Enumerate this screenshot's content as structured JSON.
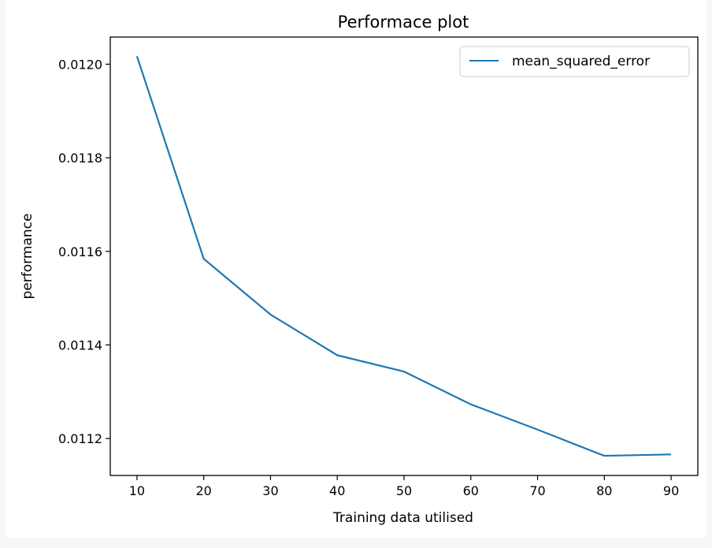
{
  "chart_data": {
    "type": "line",
    "title": "Performace plot",
    "xlabel": "Training data utilised",
    "ylabel": "performance",
    "x": [
      10,
      20,
      30,
      40,
      50,
      60,
      70,
      80,
      90
    ],
    "series": [
      {
        "name": "mean_squared_error",
        "color": "#1f77b4",
        "values": [
          0.012017,
          0.011584,
          0.011465,
          0.011378,
          0.011343,
          0.011273,
          0.011219,
          0.011163,
          0.011166
        ]
      }
    ],
    "xticks": [
      10,
      20,
      30,
      40,
      50,
      60,
      70,
      80,
      90
    ],
    "xtick_labels": [
      "10",
      "20",
      "30",
      "40",
      "50",
      "60",
      "70",
      "80",
      "90"
    ],
    "yticks": [
      0.0112,
      0.0114,
      0.0116,
      0.0118,
      0.012
    ],
    "ytick_labels": [
      "0.0112",
      "0.0114",
      "0.0116",
      "0.0118",
      "0.0120"
    ],
    "xlim": [
      6,
      94
    ],
    "ylim": [
      0.011121,
      0.012058
    ],
    "grid": false,
    "legend_position": "top-right"
  }
}
